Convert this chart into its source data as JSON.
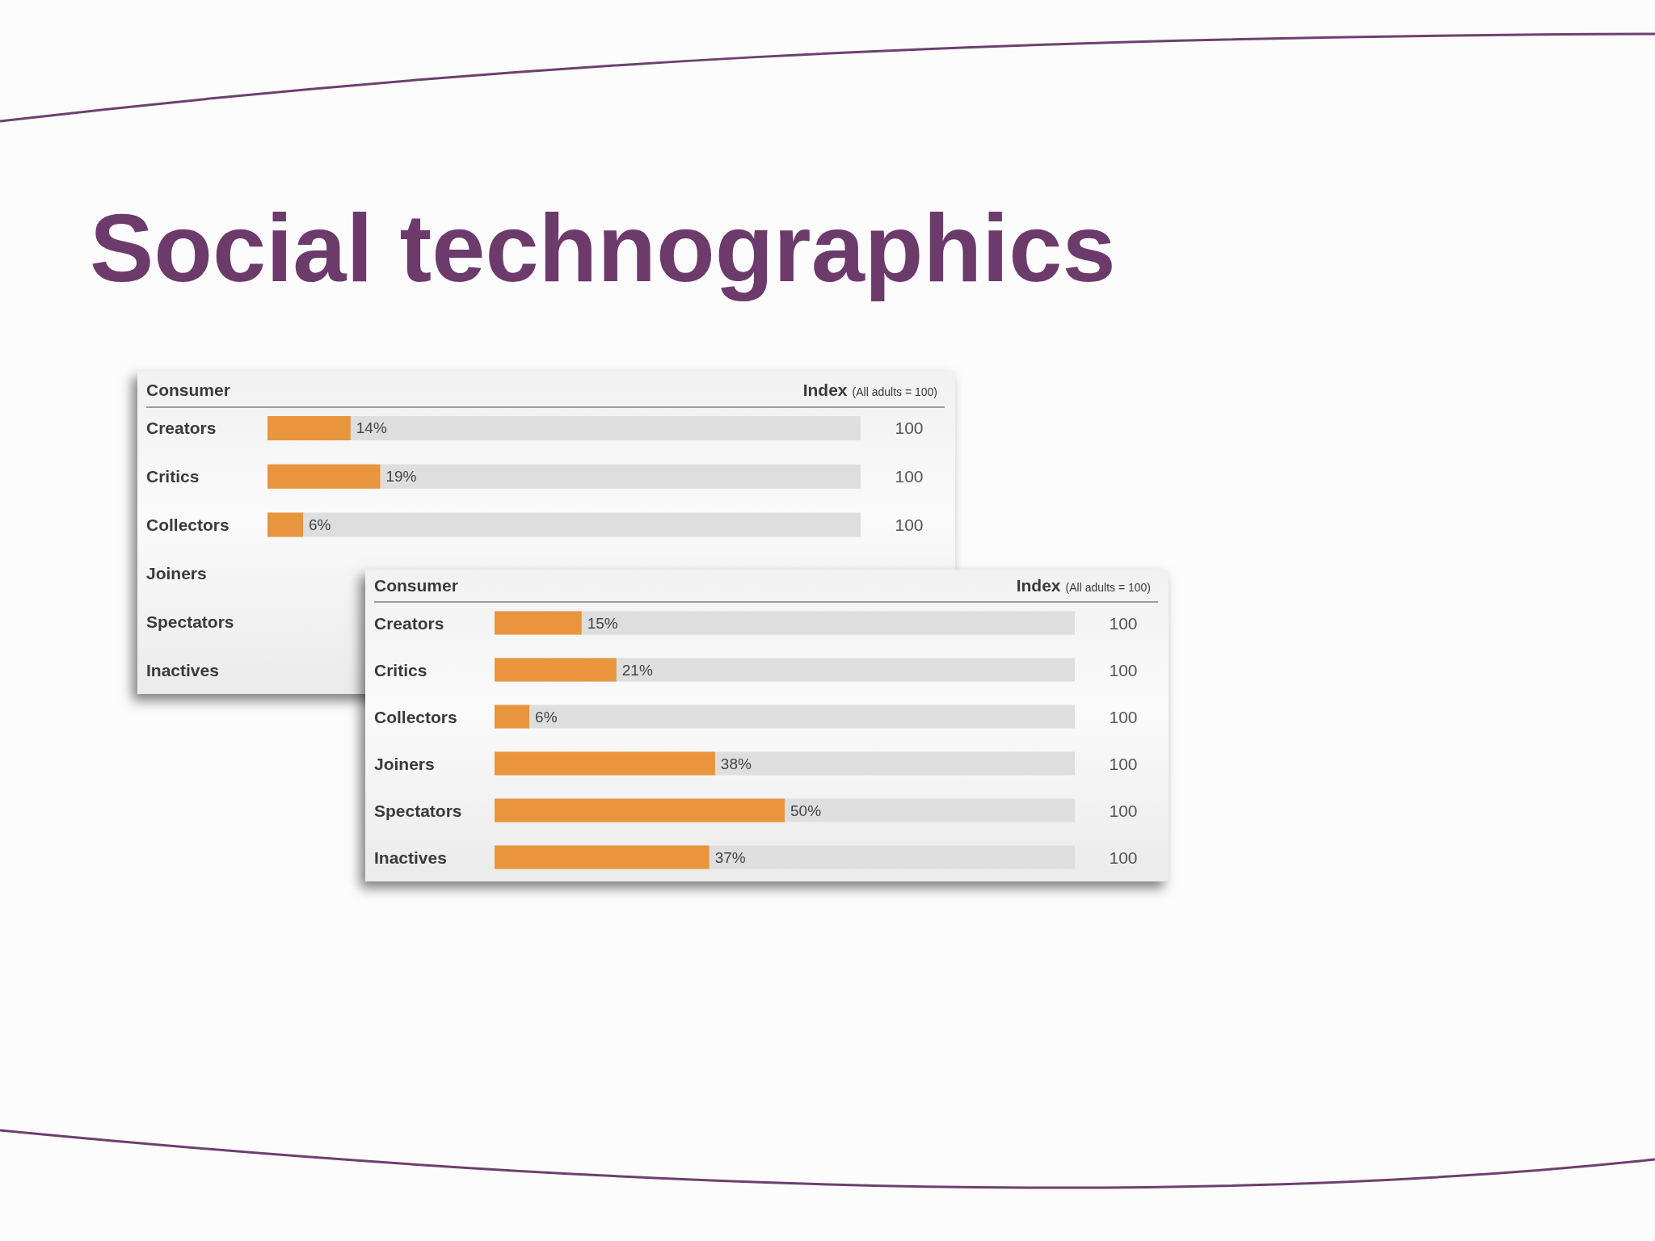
{
  "chart_data": [
    {
      "type": "bar",
      "orientation": "horizontal",
      "title": "Social technographics",
      "ylabel": "Consumer",
      "categories": [
        "Creators",
        "Critics",
        "Collectors",
        "Joiners",
        "Spectators",
        "Inactives"
      ],
      "values": [
        14,
        19,
        6,
        null,
        null,
        null
      ],
      "value_labels": [
        "14%",
        "19%",
        "6%",
        null,
        null,
        null
      ],
      "color": "#e8953d",
      "xlim": [
        0,
        100
      ],
      "tick_labels": "y",
      "annotations": [
        "Index",
        "(All adults = 100)",
        "100",
        "100",
        "100"
      ]
    },
    {
      "type": "bar",
      "orientation": "horizontal",
      "ylabel": "Consumer",
      "categories": [
        "Creators",
        "Critics",
        "Collectors",
        "Joiners",
        "Spectators",
        "Inactives"
      ],
      "values": [
        15,
        21,
        6,
        38,
        50,
        37
      ],
      "value_labels": [
        "15%",
        "21%",
        "6%",
        "38%",
        "50%",
        "37%"
      ],
      "color": "#e8953d",
      "xlim": [
        0,
        100
      ],
      "tick_labels": "y",
      "annotations": [
        "Index",
        "(All adults = 100)",
        "100",
        "100",
        "100",
        "100",
        "100",
        "100"
      ]
    }
  ]
}
